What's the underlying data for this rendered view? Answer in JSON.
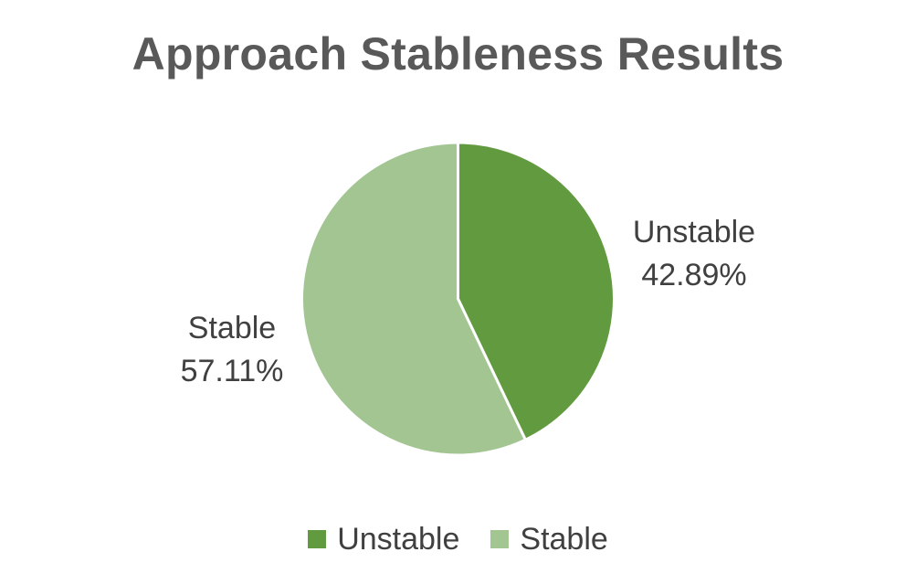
{
  "chart_data": {
    "type": "pie",
    "title": "Approach Stableness Results",
    "legend_position": "bottom",
    "slices": [
      {
        "name": "Unstable",
        "value": 42.89,
        "label": "42.89%",
        "color": "#629b3f"
      },
      {
        "name": "Stable",
        "value": 57.11,
        "label": "57.11%",
        "color": "#a2c592"
      }
    ]
  }
}
